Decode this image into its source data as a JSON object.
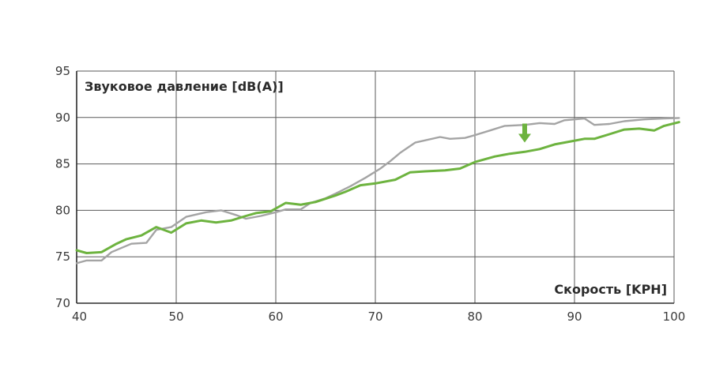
{
  "chart_data": {
    "type": "line",
    "title": "",
    "xlabel": "Скорость [KPH]",
    "ylabel": "Звуковое давление [dB(A)]",
    "xlim": [
      40,
      100
    ],
    "ylim": [
      70,
      95
    ],
    "x_ticks": [
      40,
      50,
      60,
      70,
      80,
      90,
      100
    ],
    "y_ticks": [
      70,
      75,
      80,
      85,
      90,
      95
    ],
    "grid": true,
    "legend": "none",
    "annotations": [
      {
        "type": "arrow-down",
        "x": 85,
        "y": 87.3,
        "color": "#6db33f"
      }
    ],
    "series": [
      {
        "color": "#a4a4a4",
        "points": [
          [
            40,
            74.3
          ],
          [
            41,
            74.6
          ],
          [
            42.5,
            74.6
          ],
          [
            43.5,
            75.5
          ],
          [
            45.5,
            76.4
          ],
          [
            47,
            76.5
          ],
          [
            48,
            77.9
          ],
          [
            49.5,
            78.2
          ],
          [
            51,
            79.3
          ],
          [
            53,
            79.8
          ],
          [
            54.5,
            80.0
          ],
          [
            56,
            79.5
          ],
          [
            57,
            79.1
          ],
          [
            58.5,
            79.4
          ],
          [
            60,
            79.8
          ],
          [
            61,
            80.1
          ],
          [
            62.5,
            80.1
          ],
          [
            63.5,
            80.8
          ],
          [
            65,
            81.3
          ],
          [
            66,
            81.8
          ],
          [
            67.5,
            82.6
          ],
          [
            69,
            83.5
          ],
          [
            70.5,
            84.5
          ],
          [
            71.5,
            85.3
          ],
          [
            72.5,
            86.2
          ],
          [
            74,
            87.3
          ],
          [
            76.5,
            87.9
          ],
          [
            77.5,
            87.7
          ],
          [
            79,
            87.8
          ],
          [
            80,
            88.1
          ],
          [
            81.5,
            88.6
          ],
          [
            83,
            89.1
          ],
          [
            85,
            89.2
          ],
          [
            86.5,
            89.4
          ],
          [
            88,
            89.3
          ],
          [
            89,
            89.7
          ],
          [
            91,
            89.9
          ],
          [
            92,
            89.2
          ],
          [
            93.5,
            89.3
          ],
          [
            95,
            89.6
          ],
          [
            97,
            89.8
          ],
          [
            99,
            89.9
          ],
          [
            100.5,
            89.95
          ]
        ]
      },
      {
        "color": "#6db33f",
        "points": [
          [
            40,
            75.7
          ],
          [
            41,
            75.4
          ],
          [
            42.5,
            75.5
          ],
          [
            44,
            76.4
          ],
          [
            45,
            76.9
          ],
          [
            46.5,
            77.3
          ],
          [
            48,
            78.2
          ],
          [
            49.5,
            77.6
          ],
          [
            51,
            78.6
          ],
          [
            52.5,
            78.9
          ],
          [
            54,
            78.7
          ],
          [
            55.5,
            78.9
          ],
          [
            57,
            79.4
          ],
          [
            58,
            79.7
          ],
          [
            59.5,
            79.9
          ],
          [
            61,
            80.8
          ],
          [
            62.5,
            80.6
          ],
          [
            64,
            80.9
          ],
          [
            66,
            81.6
          ],
          [
            67,
            82.0
          ],
          [
            68.5,
            82.7
          ],
          [
            70,
            82.9
          ],
          [
            72,
            83.3
          ],
          [
            73.5,
            84.1
          ],
          [
            75,
            84.2
          ],
          [
            77,
            84.3
          ],
          [
            78.5,
            84.5
          ],
          [
            80,
            85.2
          ],
          [
            82,
            85.8
          ],
          [
            83.5,
            86.1
          ],
          [
            85,
            86.3
          ],
          [
            86.5,
            86.6
          ],
          [
            88,
            87.1
          ],
          [
            89.5,
            87.4
          ],
          [
            91,
            87.7
          ],
          [
            92,
            87.7
          ],
          [
            93.5,
            88.2
          ],
          [
            95,
            88.7
          ],
          [
            96.5,
            88.8
          ],
          [
            98,
            88.6
          ],
          [
            99,
            89.1
          ],
          [
            100.5,
            89.5
          ]
        ]
      }
    ]
  }
}
